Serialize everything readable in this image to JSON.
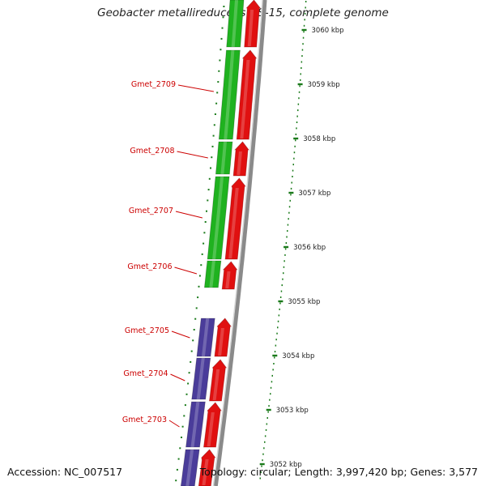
{
  "title": "Geobacter metallireducens GS-15, complete genome",
  "accession": "Accession: NC_007517",
  "topology": "Topology: circular; Length: 3,997,420 bp; Genes: 3,577",
  "colors": {
    "forward_cds": "#e01010",
    "reverse_green": "#1fb21f",
    "reverse_blue": "#4a3c9a",
    "gene_label": "#cc0000",
    "tick": "#1a7a1a",
    "backbone": "#8a8a8a"
  },
  "ruler": [
    {
      "label": "3060 kbp"
    },
    {
      "label": "3059 kbp"
    },
    {
      "label": "3058 kbp"
    },
    {
      "label": "3057 kbp"
    },
    {
      "label": "3056 kbp"
    },
    {
      "label": "3055 kbp"
    },
    {
      "label": "3054 kbp"
    },
    {
      "label": "3053 kbp"
    },
    {
      "label": "3052 kbp"
    }
  ],
  "genes": [
    {
      "label": "Gmet_2709"
    },
    {
      "label": "Gmet_2708"
    },
    {
      "label": "Gmet_2707"
    },
    {
      "label": "Gmet_2706"
    },
    {
      "label": "Gmet_2705"
    },
    {
      "label": "Gmet_2704"
    },
    {
      "label": "Gmet_2703"
    }
  ]
}
